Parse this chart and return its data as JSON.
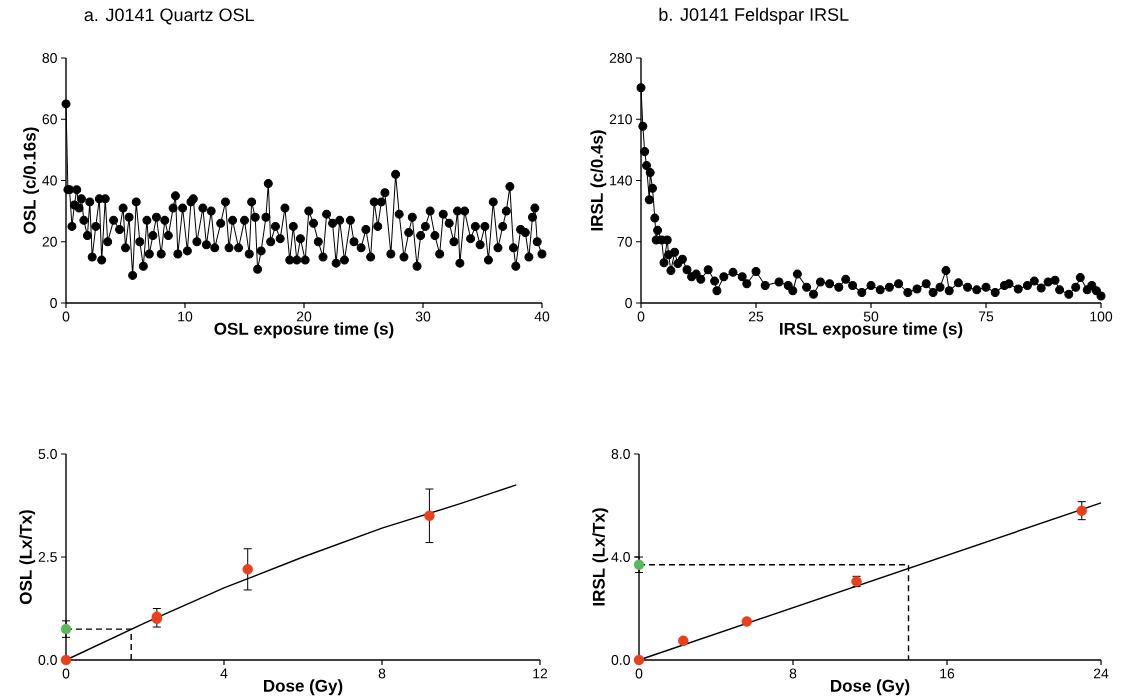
{
  "chart_data": [
    {
      "type": "line",
      "title": "a. J0141 Quartz OSL",
      "xlabel": "OSL exposure time (s)",
      "ylabel": "OSL (c/0.16s)",
      "xlim": [
        0,
        40
      ],
      "ylim": [
        0,
        80
      ],
      "xticks": [
        0,
        10,
        20,
        30,
        40
      ],
      "yticks": [
        0,
        20,
        40,
        60,
        80
      ],
      "marker": "circle",
      "line_style": "solid",
      "grid": false,
      "series": [
        {
          "color": "#000000",
          "x": [
            0,
            0.16,
            0.3,
            0.5,
            0.7,
            0.9,
            1.1,
            1.3,
            1.5,
            1.8,
            2.0,
            2.2,
            2.5,
            2.8,
            3.0,
            3.3,
            3.5,
            4.0,
            4.5,
            4.8,
            5.0,
            5.3,
            5.6,
            5.9,
            6.2,
            6.5,
            6.8,
            7.0,
            7.3,
            7.6,
            8.0,
            8.3,
            8.6,
            9.0,
            9.2,
            9.4,
            9.8,
            10.2,
            10.5,
            10.7,
            11.0,
            11.5,
            11.8,
            12.2,
            12.5,
            13.0,
            13.4,
            13.7,
            14.0,
            14.5,
            15.0,
            15.4,
            15.6,
            15.9,
            16.1,
            16.4,
            16.8,
            17.0,
            17.2,
            17.6,
            18.0,
            18.4,
            18.8,
            19.1,
            19.4,
            19.7,
            20.1,
            20.4,
            20.8,
            21.2,
            21.6,
            21.9,
            22.4,
            22.7,
            23.0,
            23.4,
            23.9,
            24.2,
            24.8,
            25.2,
            25.6,
            25.9,
            26.2,
            26.5,
            26.8,
            27.3,
            27.7,
            28.0,
            28.4,
            28.8,
            29.1,
            29.5,
            29.8,
            30.2,
            30.6,
            31.0,
            31.4,
            31.7,
            32.2,
            32.6,
            32.9,
            33.1,
            33.5,
            34.0,
            34.4,
            34.8,
            35.2,
            35.5,
            35.9,
            36.3,
            36.7,
            37.0,
            37.3,
            37.6,
            37.8,
            38.2,
            38.6,
            38.9,
            39.2,
            39.4,
            39.6,
            40.0
          ],
          "values": [
            65,
            37,
            37,
            25,
            32,
            37,
            31,
            34,
            27,
            22,
            33,
            15,
            25,
            34,
            14,
            34,
            20,
            27,
            24,
            31,
            18,
            28,
            9,
            33,
            20,
            12,
            27,
            16,
            22,
            28,
            16,
            27,
            22,
            31,
            35,
            16,
            31,
            17,
            33,
            34,
            20,
            31,
            19,
            30,
            18,
            26,
            33,
            18,
            27,
            18,
            27,
            16,
            33,
            28,
            11,
            17,
            28,
            39,
            20,
            25,
            21,
            31,
            14,
            25,
            14,
            21,
            14,
            30,
            26,
            20,
            15,
            29,
            26,
            13,
            27,
            14,
            27,
            20,
            18,
            24,
            15,
            33,
            25,
            33,
            36,
            16,
            42,
            29,
            15,
            23,
            28,
            12,
            22,
            25,
            30,
            22,
            16,
            29,
            26,
            20,
            30,
            13,
            30,
            21,
            25,
            19,
            25,
            14,
            33,
            18,
            25,
            30,
            38,
            18,
            12,
            24,
            23,
            15,
            28,
            31,
            20,
            16
          ]
        }
      ]
    },
    {
      "type": "line",
      "title": "b. J0141 Feldspar IRSL",
      "xlabel": "IRSL exposure time (s)",
      "ylabel": "IRSL (c/0.4s)",
      "xlim": [
        0,
        100
      ],
      "ylim": [
        0,
        280
      ],
      "xticks": [
        0,
        25,
        50,
        75,
        100
      ],
      "yticks": [
        0,
        70,
        140,
        210,
        280
      ],
      "marker": "circle",
      "line_style": "solid",
      "grid": false,
      "series": [
        {
          "color": "#000000",
          "x": [
            0,
            0.4,
            0.8,
            1.2,
            1.8,
            2.0,
            2.5,
            3.0,
            3.3,
            3.6,
            4.5,
            5.0,
            5.7,
            6.0,
            6.5,
            7.3,
            8.0,
            9.0,
            10,
            11,
            12,
            13,
            14.6,
            16,
            16.5,
            18,
            20,
            22,
            23,
            25,
            27,
            30,
            32,
            33,
            34,
            36,
            37.5,
            39,
            41,
            43,
            44.5,
            46,
            48,
            50,
            52,
            54,
            56,
            58,
            60,
            62,
            63.5,
            65,
            66.3,
            67,
            69,
            71,
            73,
            75,
            77,
            79,
            80,
            82,
            84,
            85.5,
            87,
            88.5,
            90,
            91,
            93,
            94.5,
            95.5,
            97,
            98,
            99,
            100
          ],
          "values": [
            246,
            202,
            173,
            157,
            118,
            149,
            131,
            97,
            72,
            83,
            72,
            46,
            72,
            55,
            37,
            58,
            45,
            50,
            38,
            30,
            33,
            27,
            38,
            25,
            14,
            30,
            35,
            30,
            22,
            36,
            20,
            24,
            20,
            14,
            33,
            18,
            10,
            24,
            22,
            18,
            27,
            20,
            12,
            20,
            15,
            18,
            22,
            12,
            16,
            22,
            12,
            18,
            37,
            14,
            23,
            18,
            15,
            18,
            12,
            20,
            22,
            16,
            20,
            25,
            17,
            24,
            26,
            15,
            10,
            18,
            29,
            15,
            20,
            14,
            8
          ]
        }
      ]
    },
    {
      "type": "scatter",
      "xlabel": "Dose (Gy)",
      "ylabel": "OSL (Lx/Tx)",
      "xlim": [
        0,
        12
      ],
      "ylim": [
        0,
        5
      ],
      "xticks": [
        0,
        4,
        8,
        12
      ],
      "yticks": [
        {
          "value": 0,
          "label": "0.0"
        },
        {
          "value": 2.5,
          "label": "2.5"
        },
        {
          "value": 5,
          "label": "5.0"
        }
      ],
      "grid": false,
      "series": [
        {
          "type": "line",
          "color": "#000000",
          "marker": "none",
          "line_style": "solid",
          "x": [
            0,
            2,
            4,
            6,
            8,
            10,
            11.4
          ],
          "values": [
            0,
            0.9,
            1.75,
            2.5,
            3.2,
            3.8,
            4.25
          ]
        },
        {
          "type": "line",
          "color": "#000000",
          "marker": "none",
          "line_style": "dashed",
          "x": [
            0,
            1.65,
            1.65
          ],
          "values": [
            0.75,
            0.75,
            0
          ]
        },
        {
          "type": "scatter",
          "color": "#e8401c",
          "marker": "circle",
          "x": [
            0,
            2.3,
            2.3,
            4.6,
            9.2
          ],
          "values": [
            0,
            1.0,
            1.05,
            2.2,
            3.5
          ],
          "errors": [
            null,
            null,
            [
              0.8,
              1.25
            ],
            0.5,
            0.65
          ]
        },
        {
          "type": "scatter",
          "color": "#5cb85c",
          "marker": "circle",
          "x": [
            0
          ],
          "values": [
            0.75
          ],
          "errors": [
            0.2
          ]
        }
      ]
    },
    {
      "type": "scatter",
      "xlabel": "Dose (Gy)",
      "ylabel": "IRSL (Lx/Tx)",
      "xlim": [
        0,
        24
      ],
      "ylim": [
        0,
        8
      ],
      "xticks": [
        0,
        8,
        16,
        24
      ],
      "yticks": [
        {
          "value": 0,
          "label": "0.0"
        },
        {
          "value": 4,
          "label": "4.0"
        },
        {
          "value": 8,
          "label": "8.0"
        }
      ],
      "grid": false,
      "series": [
        {
          "type": "line",
          "color": "#000000",
          "marker": "none",
          "line_style": "solid",
          "x": [
            0,
            24
          ],
          "values": [
            0,
            6.1
          ]
        },
        {
          "type": "line",
          "color": "#000000",
          "marker": "none",
          "line_style": "dashed",
          "x": [
            0,
            14,
            14
          ],
          "values": [
            3.7,
            3.7,
            0
          ]
        },
        {
          "type": "scatter",
          "color": "#e8401c",
          "marker": "circle",
          "x": [
            0,
            2.3,
            5.6,
            11.3,
            23
          ],
          "values": [
            0,
            0.75,
            1.5,
            3.05,
            5.8
          ],
          "errors": [
            null,
            null,
            null,
            0.2,
            0.35
          ]
        },
        {
          "type": "scatter",
          "color": "#5cb85c",
          "marker": "circle",
          "x": [
            0
          ],
          "values": [
            3.7
          ],
          "errors": [
            0.3
          ]
        }
      ]
    }
  ]
}
